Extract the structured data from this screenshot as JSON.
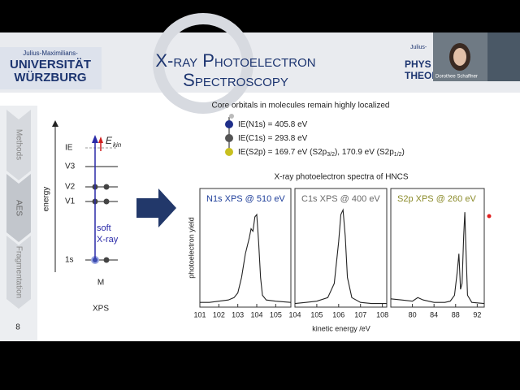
{
  "header": {
    "university_small": "Julius-Maximilians-",
    "university_line1": "UNIVERSITÄT",
    "university_line2": "WÜRZBURG",
    "title_line1": "X-ray Photoelectron",
    "title_line2": "Spectroscopy",
    "right_small": "Julius-",
    "right_line1": "PHYS",
    "right_line2": "THEOR",
    "webcam_name": "Dorothee Schaffner"
  },
  "sidebar": {
    "items": [
      "Methods",
      "AES",
      "Fragmentation"
    ],
    "page_number": "8"
  },
  "diagram": {
    "axis_label": "energy",
    "levels": [
      "IE",
      "V3",
      "V2",
      "V1",
      "1s"
    ],
    "ekin": "E",
    "ekin_sub": "kin",
    "photon_line1": "soft",
    "photon_line2": "X-ray",
    "molecule": "M",
    "method": "XPS"
  },
  "orbitals": {
    "heading": "Core orbitals in molecules remain highly localized",
    "lines": [
      [
        "IE(N1s) = 405.8 eV"
      ],
      [
        "IE(C1s) = 293.8 eV"
      ],
      [
        "IE(S2p) = 169.7 eV (S2p",
        "3/2",
        "), 170.9 eV (S2p",
        "1/2",
        ")"
      ]
    ]
  },
  "spectra": {
    "title": "X-ray photoelectron spectra of HNCS",
    "xlabel": "kinetic energy /eV",
    "ylabel": "photoelectron yield"
  },
  "chart_data": [
    {
      "type": "line",
      "title": "N1s XPS @ 510 eV",
      "title_color": "#1f3f9a",
      "xlim": [
        101,
        105.8
      ],
      "xticks": [
        101,
        102,
        103,
        104,
        105
      ],
      "ylim": [
        0,
        1
      ],
      "x": [
        101,
        101.5,
        102,
        102.5,
        102.8,
        103,
        103.2,
        103.4,
        103.6,
        103.7,
        103.8,
        103.9,
        104.0,
        104.1,
        104.2,
        104.3,
        104.5,
        105,
        105.8
      ],
      "series": [
        {
          "color": "#222222",
          "values": [
            0.04,
            0.04,
            0.05,
            0.06,
            0.08,
            0.12,
            0.25,
            0.45,
            0.58,
            0.66,
            0.64,
            0.76,
            0.78,
            0.55,
            0.25,
            0.1,
            0.06,
            0.05,
            0.04
          ]
        }
      ]
    },
    {
      "type": "line",
      "title": "C1s XPS @ 400 eV",
      "title_color": "#6a6a6a",
      "xlim": [
        104,
        108.2
      ],
      "xticks": [
        104,
        105,
        106,
        107,
        108
      ],
      "ylim": [
        0,
        1
      ],
      "x": [
        104,
        104.5,
        105,
        105.5,
        105.8,
        106,
        106.1,
        106.2,
        106.3,
        106.4,
        106.6,
        107,
        107.5,
        108.2
      ],
      "series": [
        {
          "color": "#222222",
          "values": [
            0.03,
            0.04,
            0.05,
            0.08,
            0.2,
            0.55,
            0.78,
            0.82,
            0.6,
            0.25,
            0.08,
            0.04,
            0.03,
            0.03
          ]
        }
      ]
    },
    {
      "type": "line",
      "title": "S2p XPS @ 260 eV",
      "title_color": "#8b8b2a",
      "xlim": [
        76,
        93.3
      ],
      "xticks": [
        80,
        84,
        88,
        92
      ],
      "ylim": [
        0,
        1
      ],
      "x": [
        76,
        78,
        80,
        81,
        82,
        84,
        86,
        87,
        87.8,
        88.3,
        88.6,
        88.9,
        89.2,
        89.5,
        89.7,
        89.9,
        90.2,
        91,
        93.3
      ],
      "series": [
        {
          "color": "#222222",
          "values": [
            0.07,
            0.06,
            0.05,
            0.08,
            0.06,
            0.04,
            0.04,
            0.05,
            0.1,
            0.3,
            0.45,
            0.15,
            0.2,
            0.6,
            0.8,
            0.5,
            0.1,
            0.04,
            0.03
          ]
        }
      ]
    }
  ]
}
